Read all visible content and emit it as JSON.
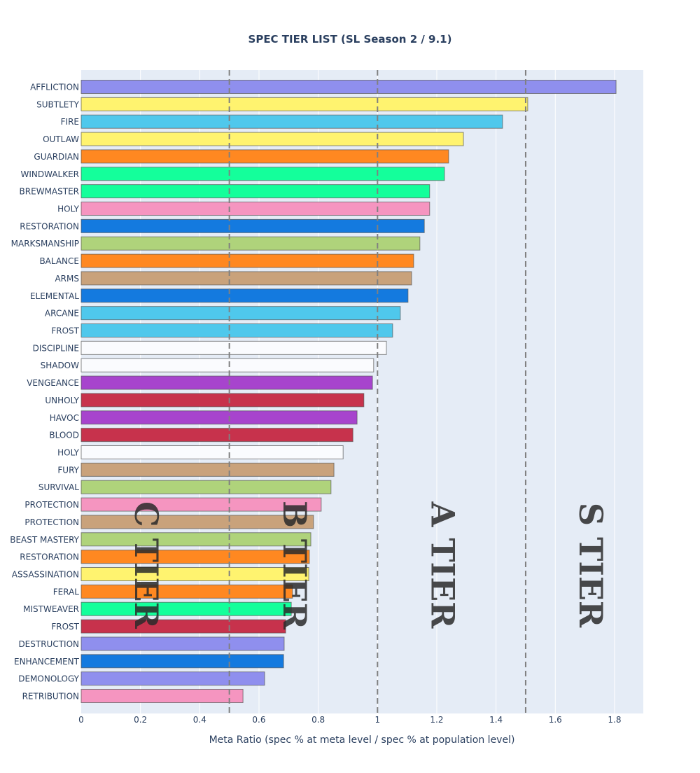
{
  "chart_data": {
    "type": "bar",
    "orientation": "horizontal",
    "title": "SPEC TIER LIST (SL Season 2 / 9.1)",
    "xlabel": "Meta Ratio (spec % at meta level / spec % at population level)",
    "ylabel": "",
    "xlim": [
      0,
      1.9
    ],
    "xticks": [
      0,
      0.2,
      0.4,
      0.6,
      0.8,
      1,
      1.2,
      1.4,
      1.6,
      1.8
    ],
    "xtick_labels": [
      "0",
      "0.2",
      "0.4",
      "0.6",
      "0.8",
      "1",
      "1.2",
      "1.4",
      "1.6",
      "1.8"
    ],
    "grid": true,
    "reference_lines": [
      0.5,
      1.0,
      1.5
    ],
    "tier_labels": [
      {
        "text": "C TIER",
        "x": 0.22
      },
      {
        "text": "B TIER",
        "x": 0.72
      },
      {
        "text": "A TIER",
        "x": 1.22
      },
      {
        "text": "S TIER",
        "x": 1.72
      }
    ],
    "categories": [
      "AFFLICTION",
      "SUBTLETY",
      "FIRE",
      "OUTLAW",
      "GUARDIAN",
      "WINDWALKER",
      "BREWMASTER",
      "HOLY",
      "RESTORATION",
      "MARKSMANSHIP",
      "BALANCE",
      "ARMS",
      "ELEMENTAL",
      "ARCANE",
      "FROST",
      "DISCIPLINE",
      "SHADOW",
      "VENGEANCE",
      "UNHOLY",
      "HAVOC",
      "BLOOD",
      "HOLY",
      "FURY",
      "SURVIVAL",
      "PROTECTION",
      "PROTECTION",
      "BEAST MASTERY",
      "RESTORATION",
      "ASSASSINATION",
      "FERAL",
      "MISTWEAVER",
      "FROST",
      "DESTRUCTION",
      "ENHANCEMENT",
      "DEMONOLOGY",
      "RETRIBUTION"
    ],
    "values": [
      1.805,
      1.507,
      1.422,
      1.29,
      1.24,
      1.226,
      1.176,
      1.176,
      1.158,
      1.143,
      1.122,
      1.115,
      1.103,
      1.077,
      1.051,
      1.03,
      0.987,
      0.983,
      0.954,
      0.931,
      0.917,
      0.884,
      0.853,
      0.843,
      0.81,
      0.784,
      0.775,
      0.77,
      0.768,
      0.713,
      0.709,
      0.69,
      0.685,
      0.683,
      0.619,
      0.546
    ],
    "colors": [
      "#8f8fee",
      "#fff36f",
      "#4fc8ec",
      "#fff36f",
      "#ff8821",
      "#14ff9b",
      "#14ff9b",
      "#f595c0",
      "#147adf",
      "#afd37b",
      "#ff8821",
      "#c9a27b",
      "#147adf",
      "#4fc8ec",
      "#4fc8ec",
      "#fafbfe",
      "#fafbfe",
      "#a744cd",
      "#c7324c",
      "#a744cd",
      "#c7324c",
      "#fafbfe",
      "#c9a27b",
      "#afd37b",
      "#f595c0",
      "#c9a27b",
      "#afd37b",
      "#ff8821",
      "#fff36f",
      "#ff8821",
      "#14ff9b",
      "#c7324c",
      "#8f8fee",
      "#147adf",
      "#8f8fee",
      "#f595c0"
    ]
  }
}
